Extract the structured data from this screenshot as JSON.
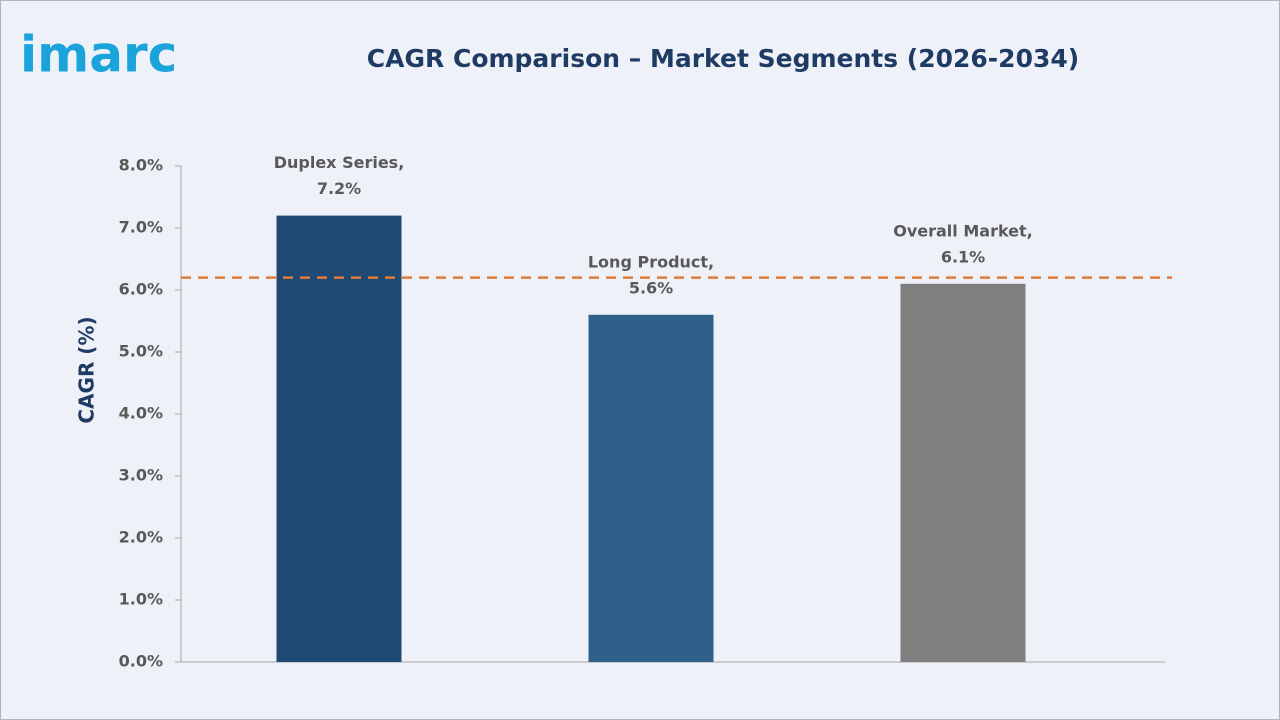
{
  "logo": "imarc",
  "chart_data": {
    "type": "bar",
    "title": "CAGR Comparison – Market Segments (2026-2034)",
    "ylabel": "CAGR (%)",
    "categories": [
      "Duplex Series,",
      "Long Product,",
      "Overall Market,"
    ],
    "values": [
      7.2,
      5.6,
      6.1
    ],
    "value_labels": [
      "7.2%",
      "5.6%",
      "6.1%"
    ],
    "colors": [
      "#1f4a73",
      "#2e6089",
      "#7f7f7f"
    ],
    "reference_line": {
      "value": 6.2,
      "color": "#e07b39"
    },
    "ylim": [
      0,
      8
    ],
    "yticks": [
      {
        "value": 0,
        "label": "0.0%"
      },
      {
        "value": 1,
        "label": "1.0%"
      },
      {
        "value": 2,
        "label": "2.0%"
      },
      {
        "value": 3,
        "label": "3.0%"
      },
      {
        "value": 4,
        "label": "4.0%"
      },
      {
        "value": 5,
        "label": "5.0%"
      },
      {
        "value": 6,
        "label": "6.0%"
      },
      {
        "value": 7,
        "label": "7.0%"
      },
      {
        "value": 8,
        "label": "8.0%"
      }
    ],
    "grid": false
  }
}
